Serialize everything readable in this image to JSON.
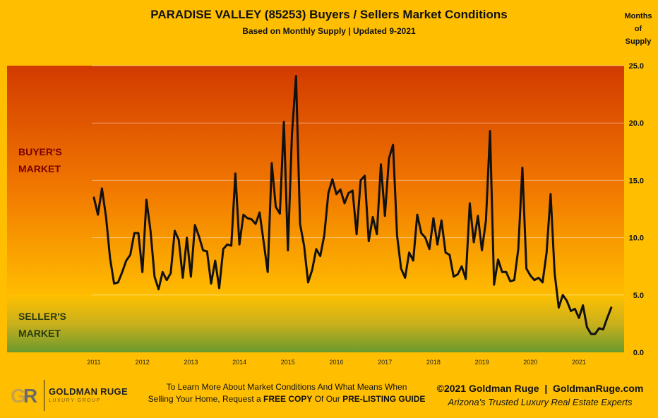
{
  "header": {
    "title": "PARADISE VALLEY (85253) Buyers / Sellers Market Conditions",
    "subtitle": "Based on Monthly Supply | Updated 9-2021",
    "y_axis_label": "Months\nof\nSupply"
  },
  "zones": {
    "buyer": "BUYER'S\nMARKET",
    "seller": "SELLER'S\nMARKET"
  },
  "footer": {
    "cta_line1": "To Learn More About Market Conditions And What Means When",
    "cta_line2_prefix": "Selling Your Home, Request a ",
    "cta_bold1": "FREE COPY",
    "cta_mid": " Of Our ",
    "cta_bold2": "PRE-LISTING GUIDE",
    "copyright": "©2021 Goldman Ruge  |  GoldmanRuge.com",
    "tagline": "Arizona's Trusted Luxury Real Estate Experts"
  },
  "logo": {
    "mark": "GR",
    "name": "GOLDMAN RUGE",
    "sub": "LUXURY GROUP"
  },
  "colors": {
    "background": "#FFBF00",
    "buyer_top": "#D23A00",
    "buyer_bottom": "#FFBC00",
    "seller_top": "#FFC000",
    "seller_bottom": "#6B9A2E",
    "line": "#111111"
  },
  "chart_data": {
    "type": "line",
    "title": "PARADISE VALLEY (85253) Buyers / Sellers Market Conditions",
    "ylabel": "Months of Supply",
    "ylim": [
      0,
      25
    ],
    "yticks": [
      "0.0",
      "5.0",
      "10.0",
      "15.0",
      "20.0",
      "25.0"
    ],
    "x_tick_labels": [
      "2011",
      "2012",
      "2013",
      "2014",
      "2015",
      "2016",
      "2017",
      "2018",
      "2019",
      "2020",
      "2021"
    ],
    "start": "2011-01",
    "end": "2021-09",
    "buyer_market_threshold": 5,
    "series": [
      {
        "values": [
          13.5,
          12.0,
          14.3,
          11.8,
          8.2,
          6.0,
          6.1,
          7.0,
          8.0,
          8.5,
          10.4,
          10.4,
          7.0,
          13.3,
          10.6,
          6.6,
          5.5,
          7.0,
          6.3,
          6.9,
          10.6,
          9.8,
          6.5,
          10.0,
          6.6,
          11.1,
          10.1,
          8.9,
          8.8,
          6.0,
          8.0,
          5.6,
          9.0,
          9.4,
          9.3,
          15.6,
          9.4,
          12.0,
          11.7,
          11.6,
          11.2,
          12.2,
          9.6,
          7.0,
          16.5,
          12.7,
          12.1,
          20.1,
          8.9,
          19.0,
          24.1,
          11.2,
          9.3,
          6.1,
          7.2,
          9.0,
          8.4,
          10.2,
          13.9,
          15.1,
          13.8,
          14.2,
          13.0,
          13.9,
          14.1,
          10.3,
          15.0,
          15.4,
          9.7,
          11.8,
          10.3,
          16.4,
          11.9,
          16.9,
          18.1,
          10.2,
          7.3,
          6.5,
          8.7,
          8.0,
          12.0,
          10.4,
          10.0,
          9.0,
          11.7,
          9.4,
          11.5,
          8.7,
          8.5,
          6.6,
          6.8,
          7.5,
          6.4,
          13.0,
          9.6,
          11.9,
          8.9,
          11.5,
          19.3,
          5.9,
          8.1,
          7.0,
          7.0,
          6.2,
          6.3,
          9.0,
          16.1,
          7.3,
          6.7,
          6.3,
          6.5,
          6.1,
          8.7,
          13.8,
          6.9,
          3.9,
          5.0,
          4.5,
          3.6,
          3.8,
          3.0,
          4.1,
          2.2,
          1.6,
          1.6,
          2.1,
          2.0,
          3.0,
          3.9
        ]
      }
    ]
  }
}
